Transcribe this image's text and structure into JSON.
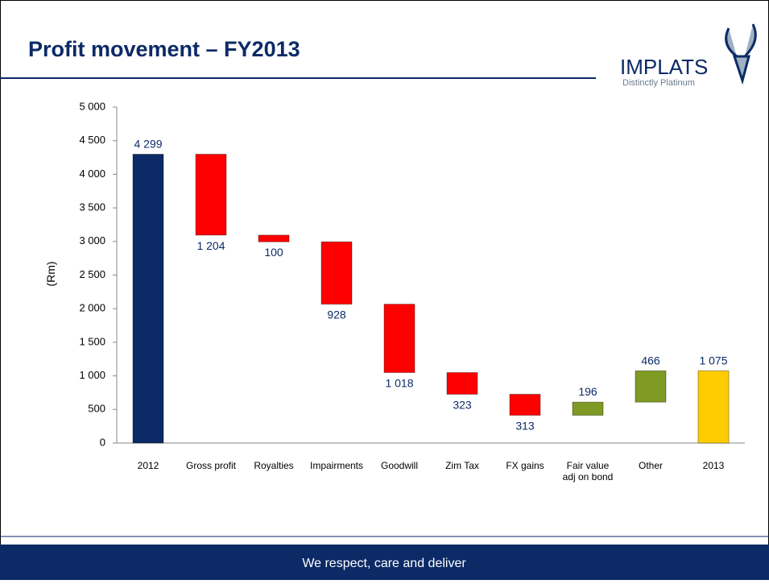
{
  "header": {
    "title": "Profit movement – FY2013",
    "logo": "IMPLATS",
    "logo_tagline": "Distinctly Platinum"
  },
  "chart_data": {
    "type": "waterfall",
    "y_label": "(Rm)",
    "categories": [
      "2012",
      "Gross profit",
      "Royalties",
      "Impairments",
      "Goodwill",
      "Zim Tax",
      "FX gains",
      "Fair value adj on bond",
      "Other",
      "2013"
    ],
    "values": [
      4299,
      -1204,
      -100,
      -928,
      -1018,
      -323,
      -313,
      196,
      466,
      1075
    ],
    "value_labels": [
      "4 299",
      "1 204",
      "100",
      "928",
      "1 018",
      "323",
      "313",
      "196",
      "466",
      "1 075"
    ],
    "measures": [
      "absolute",
      "relative",
      "relative",
      "relative",
      "relative",
      "relative",
      "relative",
      "relative",
      "relative",
      "total"
    ],
    "colors": [
      "#0b2a66",
      "#ff0000",
      "#ff0000",
      "#ff0000",
      "#ff0000",
      "#ff0000",
      "#ff0000",
      "#7f9a22",
      "#7f9a22",
      "#ffcc00"
    ],
    "ylim": [
      0,
      5000
    ],
    "yticks": [
      0,
      500,
      {
        "value": 1000,
        "label": "1 000"
      },
      {
        "value": 1500,
        "label": "1 500"
      },
      {
        "value": 2000,
        "label": "2 000"
      },
      {
        "value": 2500,
        "label": "2 500"
      },
      {
        "value": 3000,
        "label": "3 000"
      },
      {
        "value": 3500,
        "label": "3 500"
      },
      {
        "value": 4000,
        "label": "4 000"
      },
      {
        "value": 4500,
        "label": "4 500"
      },
      {
        "value": 5000,
        "label": "5 000"
      }
    ]
  },
  "footer": {
    "text": "We respect, care and deliver"
  }
}
